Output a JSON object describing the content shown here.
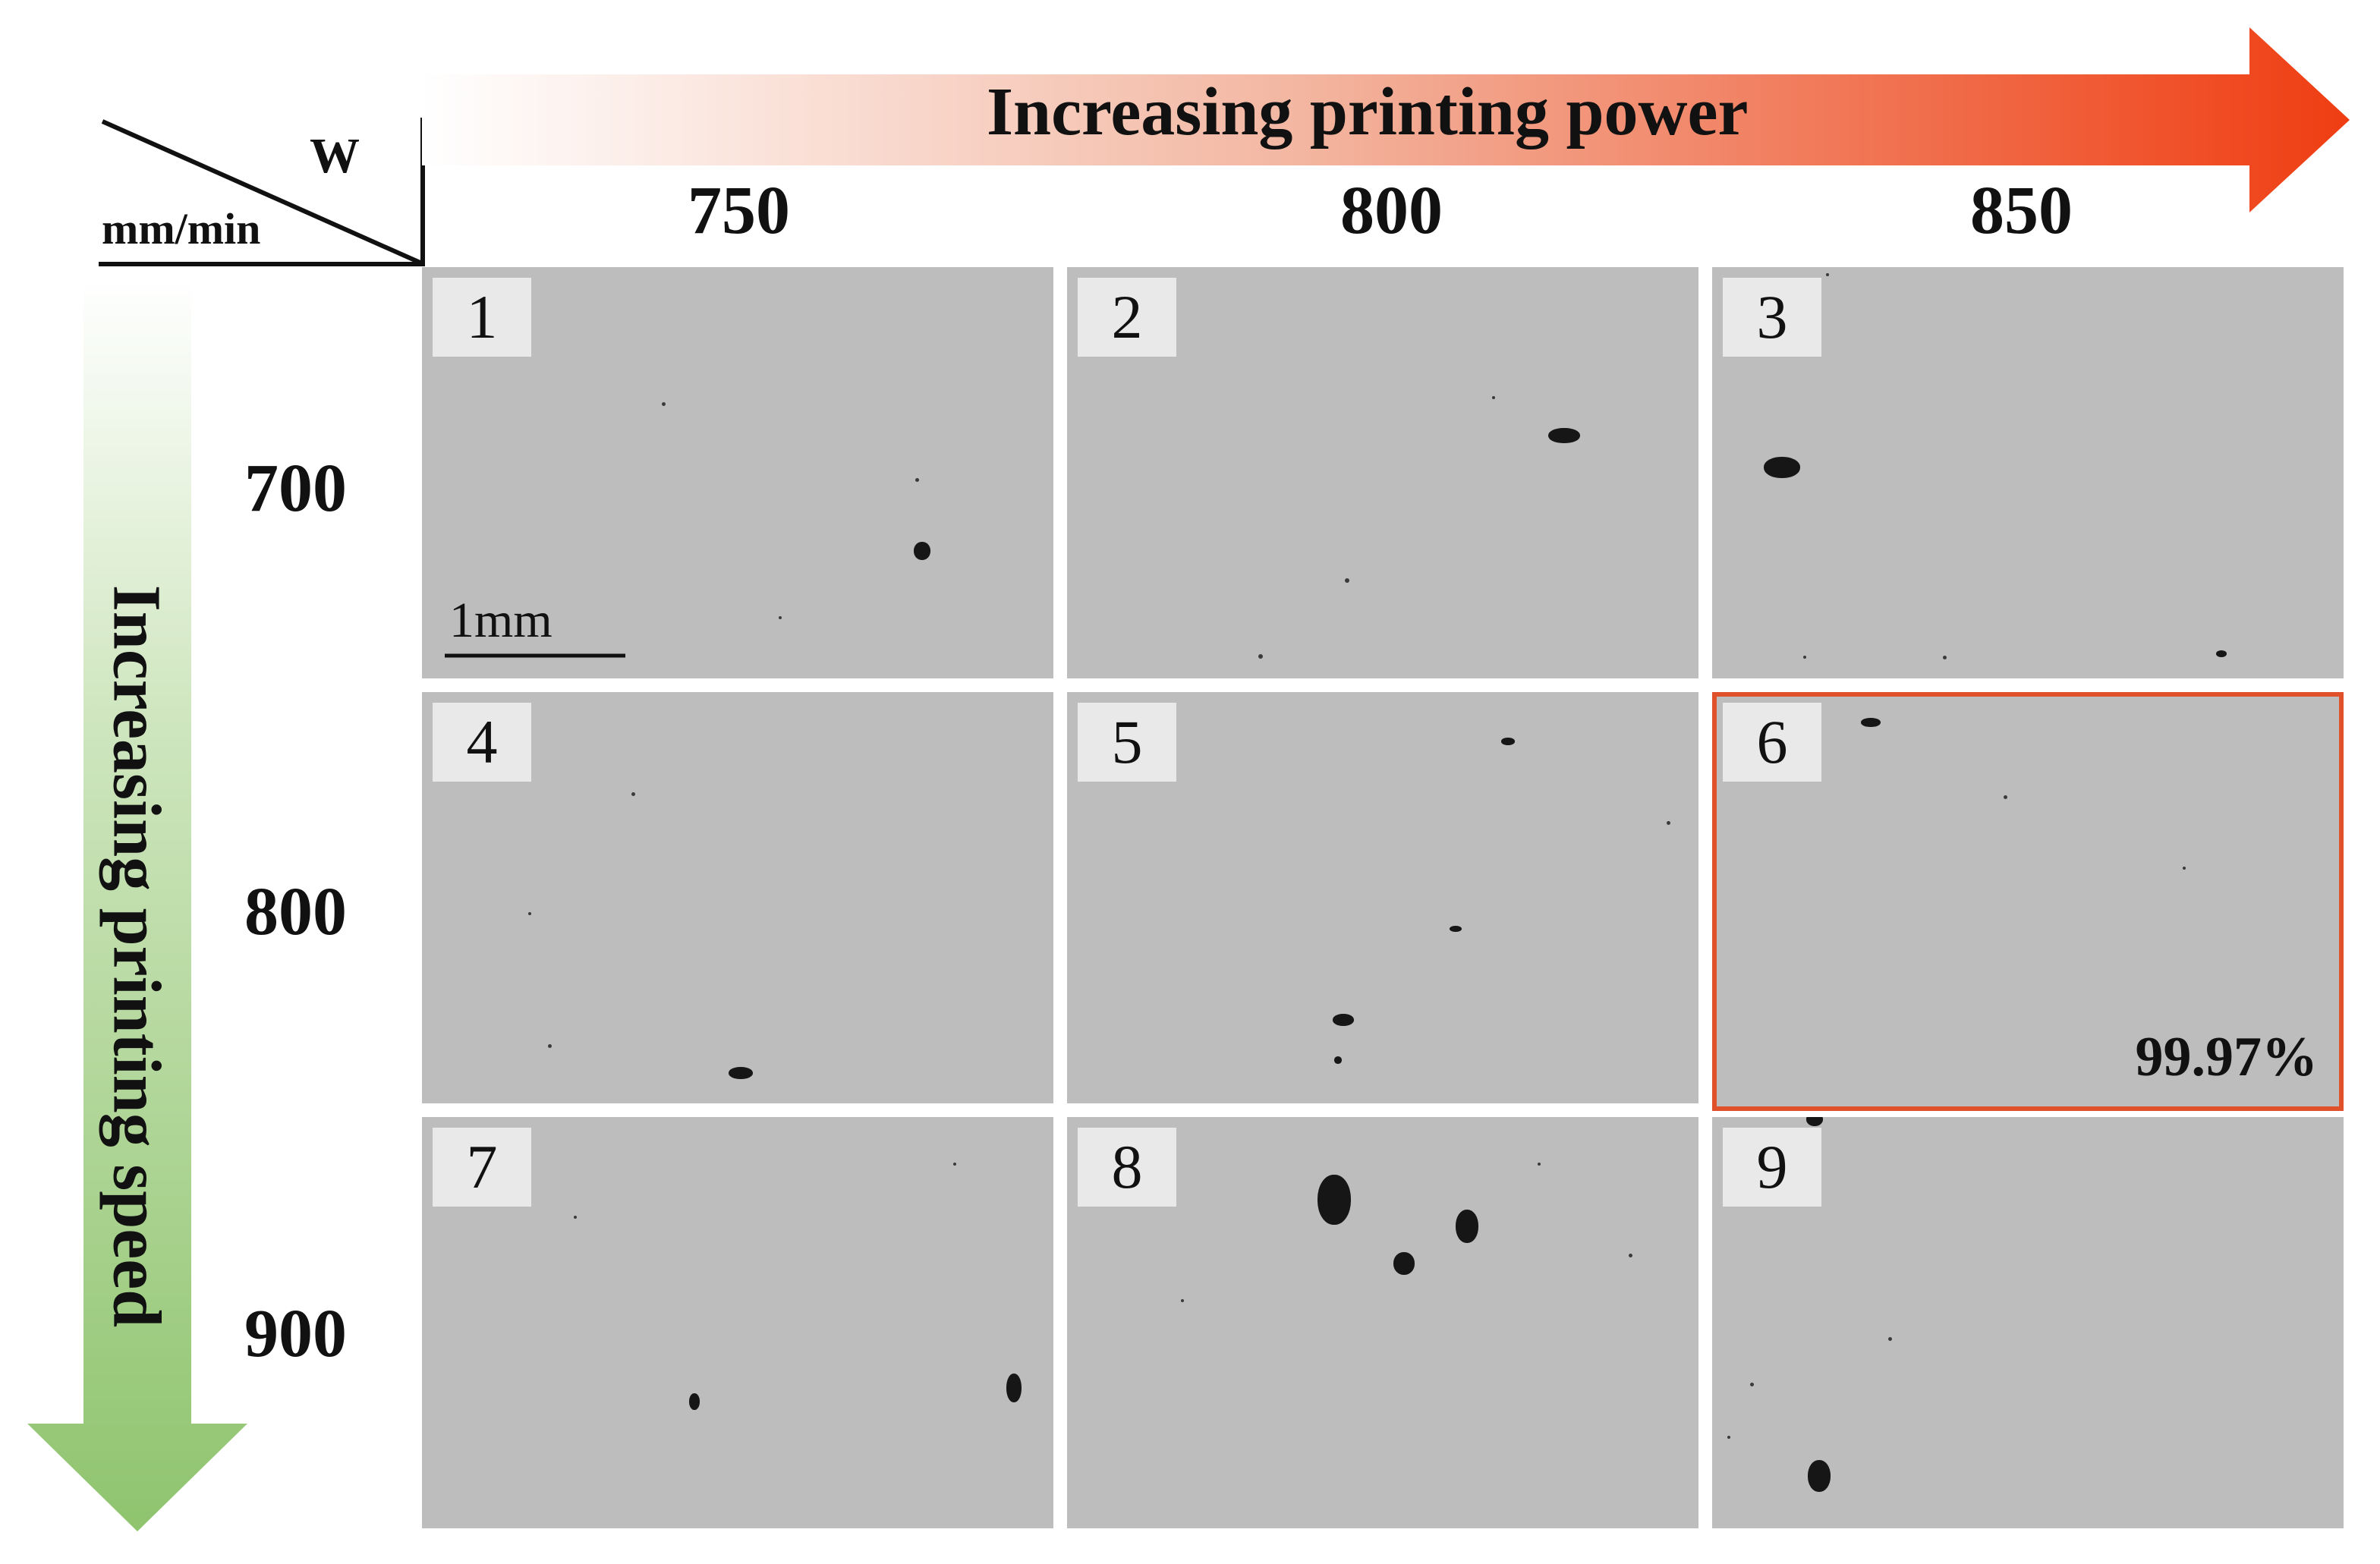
{
  "axes": {
    "corner_top": "W",
    "corner_bottom": "mm/min",
    "power_arrow_label": "Increasing printing power",
    "speed_arrow_label": "Increasing printing speed",
    "power_levels": [
      "750",
      "800",
      "850"
    ],
    "speed_levels": [
      "700",
      "800",
      "900"
    ]
  },
  "colors": {
    "power_arrow_start": "#ffffff",
    "power_arrow_end": "#ef3d12",
    "speed_arrow_start": "#ffffff",
    "speed_arrow_end": "#8fc46e",
    "highlight": "#e0502a",
    "micrograph_background": "#bdbdbd"
  },
  "scale_bar": {
    "label": "1mm"
  },
  "samples": [
    {
      "id": "1",
      "power": "750",
      "speed": "700"
    },
    {
      "id": "2",
      "power": "800",
      "speed": "700"
    },
    {
      "id": "3",
      "power": "850",
      "speed": "700"
    },
    {
      "id": "4",
      "power": "750",
      "speed": "800"
    },
    {
      "id": "5",
      "power": "800",
      "speed": "800"
    },
    {
      "id": "6",
      "power": "850",
      "speed": "800",
      "highlighted": true,
      "density": "99.97%"
    },
    {
      "id": "7",
      "power": "750",
      "speed": "900"
    },
    {
      "id": "8",
      "power": "800",
      "speed": "900"
    },
    {
      "id": "9",
      "power": "850",
      "speed": "900"
    }
  ]
}
